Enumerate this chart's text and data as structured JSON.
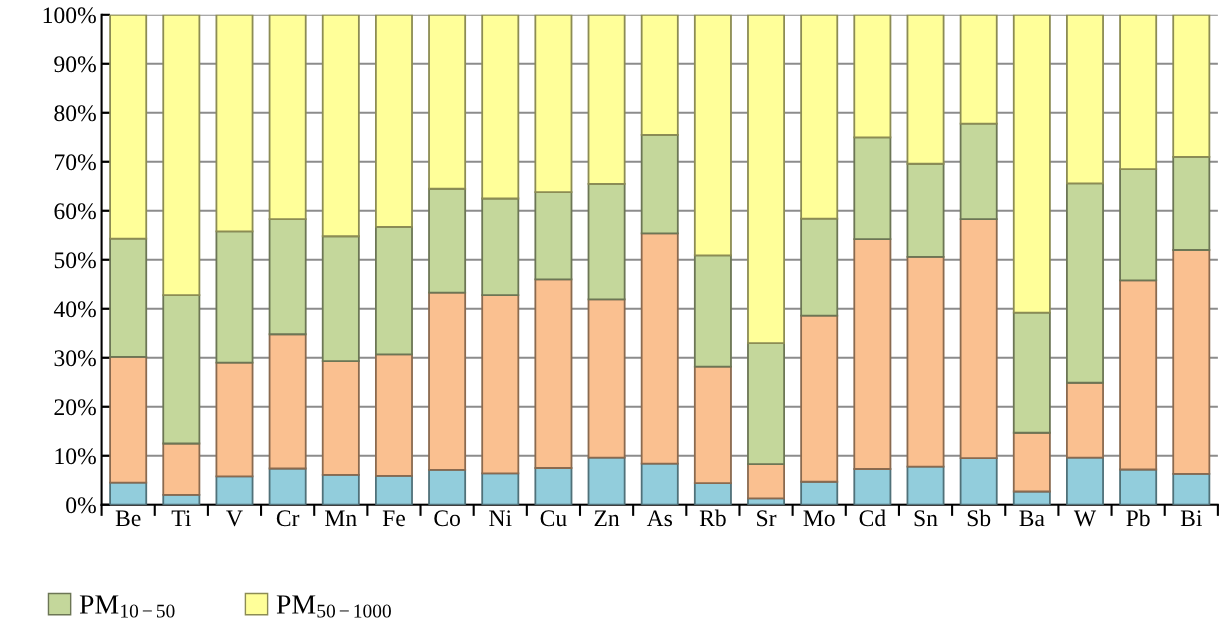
{
  "chart_data": {
    "type": "bar",
    "stacked": true,
    "categories": [
      "Be",
      "Ti",
      "V",
      "Cr",
      "Mn",
      "Fe",
      "Co",
      "Ni",
      "Cu",
      "Zn",
      "As",
      "Rb",
      "Sr",
      "Mo",
      "Cd",
      "Sn",
      "Sb",
      "Ba",
      "W",
      "Pb",
      "Bi"
    ],
    "series": [
      {
        "color": "#92cddc",
        "values": [
          4.5,
          2.0,
          5.8,
          7.4,
          6.1,
          5.9,
          7.1,
          6.4,
          7.5,
          9.6,
          8.4,
          4.4,
          1.3,
          4.7,
          7.3,
          7.8,
          9.5,
          2.7,
          9.6,
          7.2,
          6.3
        ]
      },
      {
        "color": "#fac090",
        "values": [
          25.7,
          10.5,
          23.2,
          27.4,
          23.2,
          24.8,
          36.2,
          36.4,
          38.5,
          32.3,
          47.0,
          23.8,
          7.0,
          33.9,
          46.9,
          42.8,
          48.8,
          12.0,
          15.3,
          38.6,
          45.7
        ]
      },
      {
        "name": "PM$_{10−50}$",
        "color": "#c4d79b",
        "values": [
          24.1,
          30.3,
          26.8,
          23.5,
          25.5,
          26.0,
          21.2,
          19.7,
          17.8,
          23.6,
          20.1,
          22.7,
          24.7,
          19.8,
          20.8,
          19.0,
          19.5,
          24.5,
          40.7,
          22.7,
          19.0
        ]
      },
      {
        "name": "PM$_{50−1000}$",
        "color": "#ffff99",
        "values": [
          45.7,
          57.2,
          44.2,
          41.7,
          45.2,
          43.3,
          35.5,
          37.5,
          36.2,
          34.5,
          24.5,
          49.1,
          67.0,
          41.6,
          25.0,
          30.4,
          22.2,
          60.8,
          34.4,
          31.5,
          29.0
        ]
      }
    ],
    "ylim": [
      0,
      100
    ],
    "yticks": [
      {
        "value": 0,
        "label": "0%"
      },
      {
        "value": 10,
        "label": "10%"
      },
      {
        "value": 20,
        "label": "20%"
      },
      {
        "value": 30,
        "label": "30%"
      },
      {
        "value": 40,
        "label": "40%"
      },
      {
        "value": 50,
        "label": "50%"
      },
      {
        "value": 60,
        "label": "60%"
      },
      {
        "value": 70,
        "label": "70%"
      },
      {
        "value": 80,
        "label": "80%"
      },
      {
        "value": 90,
        "label": "90%"
      },
      {
        "value": 100,
        "label": "100%"
      }
    ],
    "grid": "y",
    "legend": "bottom left"
  }
}
